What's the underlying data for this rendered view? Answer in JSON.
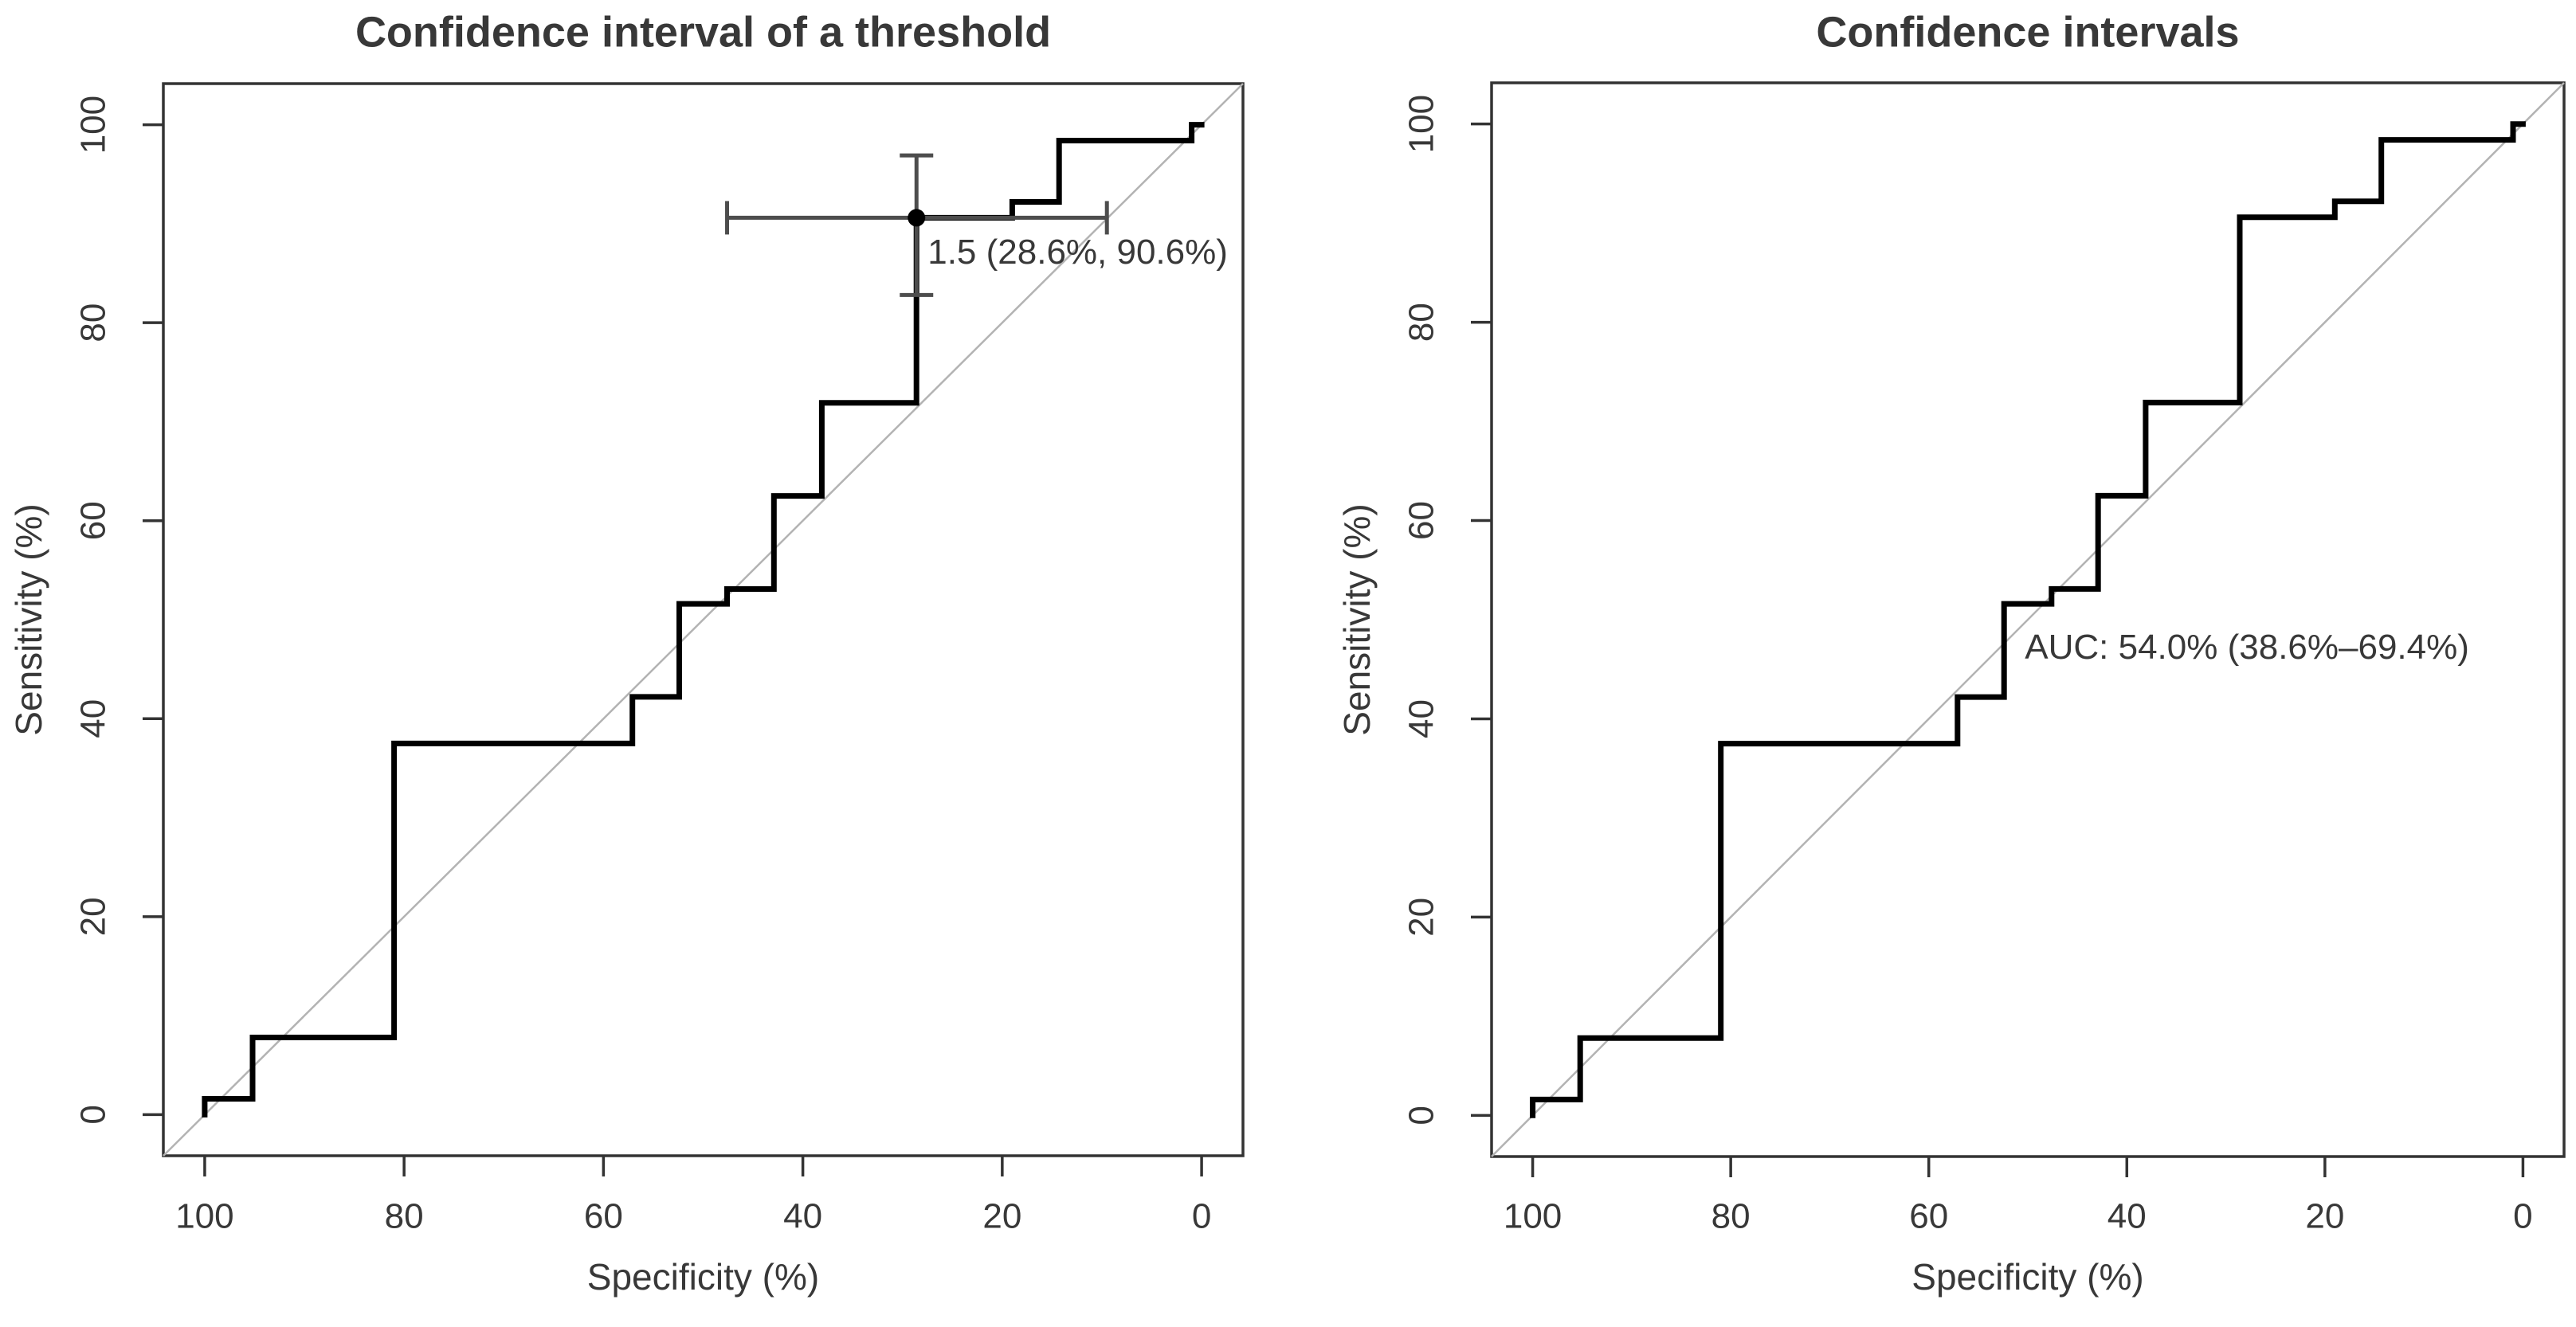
{
  "figure": {
    "background_color": "#ffffff",
    "curve_color": "#000000",
    "box_color": "#333333",
    "diagonal_color": "#b3b3b3",
    "error_bar_color": "#4d4d4d",
    "tick_label_color": "#383838",
    "annotation_color": "#3d3d3d"
  },
  "chart_data": [
    {
      "type": "line",
      "subtype": "roc-step-curve",
      "title": "Confidence interval of a threshold",
      "xlabel": "Specificity (%)",
      "ylabel": "Sensitivity (%)",
      "x_axis_reversed": true,
      "xlim": [
        100,
        0
      ],
      "ylim": [
        0,
        100
      ],
      "x_ticks": [
        100,
        80,
        60,
        40,
        20,
        0
      ],
      "y_ticks": [
        0,
        20,
        40,
        60,
        80,
        100
      ],
      "grid": false,
      "diagonal_reference": true,
      "legend": "none",
      "series": [
        {
          "name": "ROC curve",
          "points": [
            [
              100,
              0
            ],
            [
              100,
              1.6
            ],
            [
              95.2,
              1.6
            ],
            [
              95.2,
              7.8
            ],
            [
              81,
              7.8
            ],
            [
              81,
              37.5
            ],
            [
              57.1,
              37.5
            ],
            [
              57.1,
              42.2
            ],
            [
              52.4,
              42.2
            ],
            [
              52.4,
              51.6
            ],
            [
              47.6,
              51.6
            ],
            [
              47.6,
              53.1
            ],
            [
              42.9,
              53.1
            ],
            [
              42.9,
              62.5
            ],
            [
              38.1,
              62.5
            ],
            [
              38.1,
              71.9
            ],
            [
              28.6,
              71.9
            ],
            [
              28.6,
              90.6
            ],
            [
              19,
              90.6
            ],
            [
              19,
              92.2
            ],
            [
              14.3,
              92.2
            ],
            [
              14.3,
              98.4
            ],
            [
              1,
              98.4
            ],
            [
              1,
              100
            ],
            [
              0,
              100
            ]
          ]
        }
      ],
      "threshold_annotation": {
        "label": "1.5 (28.6%, 90.6%)",
        "threshold": 1.5,
        "specificity": 28.6,
        "sensitivity": 90.6,
        "specificity_ci": [
          9.5,
          47.6
        ],
        "sensitivity_ci": [
          82.8,
          96.9
        ]
      }
    },
    {
      "type": "line",
      "subtype": "roc-step-curve",
      "title": "Confidence intervals",
      "xlabel": "Specificity (%)",
      "ylabel": "Sensitivity (%)",
      "x_axis_reversed": true,
      "xlim": [
        100,
        0
      ],
      "ylim": [
        0,
        100
      ],
      "x_ticks": [
        100,
        80,
        60,
        40,
        20,
        0
      ],
      "y_ticks": [
        0,
        20,
        40,
        60,
        80,
        100
      ],
      "grid": false,
      "diagonal_reference": true,
      "legend": "none",
      "series": [
        {
          "name": "ROC curve",
          "points": [
            [
              100,
              0
            ],
            [
              100,
              1.6
            ],
            [
              95.2,
              1.6
            ],
            [
              95.2,
              7.8
            ],
            [
              81,
              7.8
            ],
            [
              81,
              37.5
            ],
            [
              57.1,
              37.5
            ],
            [
              57.1,
              42.2
            ],
            [
              52.4,
              42.2
            ],
            [
              52.4,
              51.6
            ],
            [
              47.6,
              51.6
            ],
            [
              47.6,
              53.1
            ],
            [
              42.9,
              53.1
            ],
            [
              42.9,
              62.5
            ],
            [
              38.1,
              62.5
            ],
            [
              38.1,
              71.9
            ],
            [
              28.6,
              71.9
            ],
            [
              28.6,
              90.6
            ],
            [
              19,
              90.6
            ],
            [
              19,
              92.2
            ],
            [
              14.3,
              92.2
            ],
            [
              14.3,
              98.4
            ],
            [
              1,
              98.4
            ],
            [
              1,
              100
            ],
            [
              0,
              100
            ]
          ]
        }
      ],
      "auc_annotation": {
        "label": "AUC: 54.0% (38.6%–69.4%)",
        "auc": 54.0,
        "auc_ci": [
          38.6,
          69.4
        ],
        "position": {
          "specificity": 50.3,
          "sensitivity": 47.0
        }
      }
    }
  ]
}
